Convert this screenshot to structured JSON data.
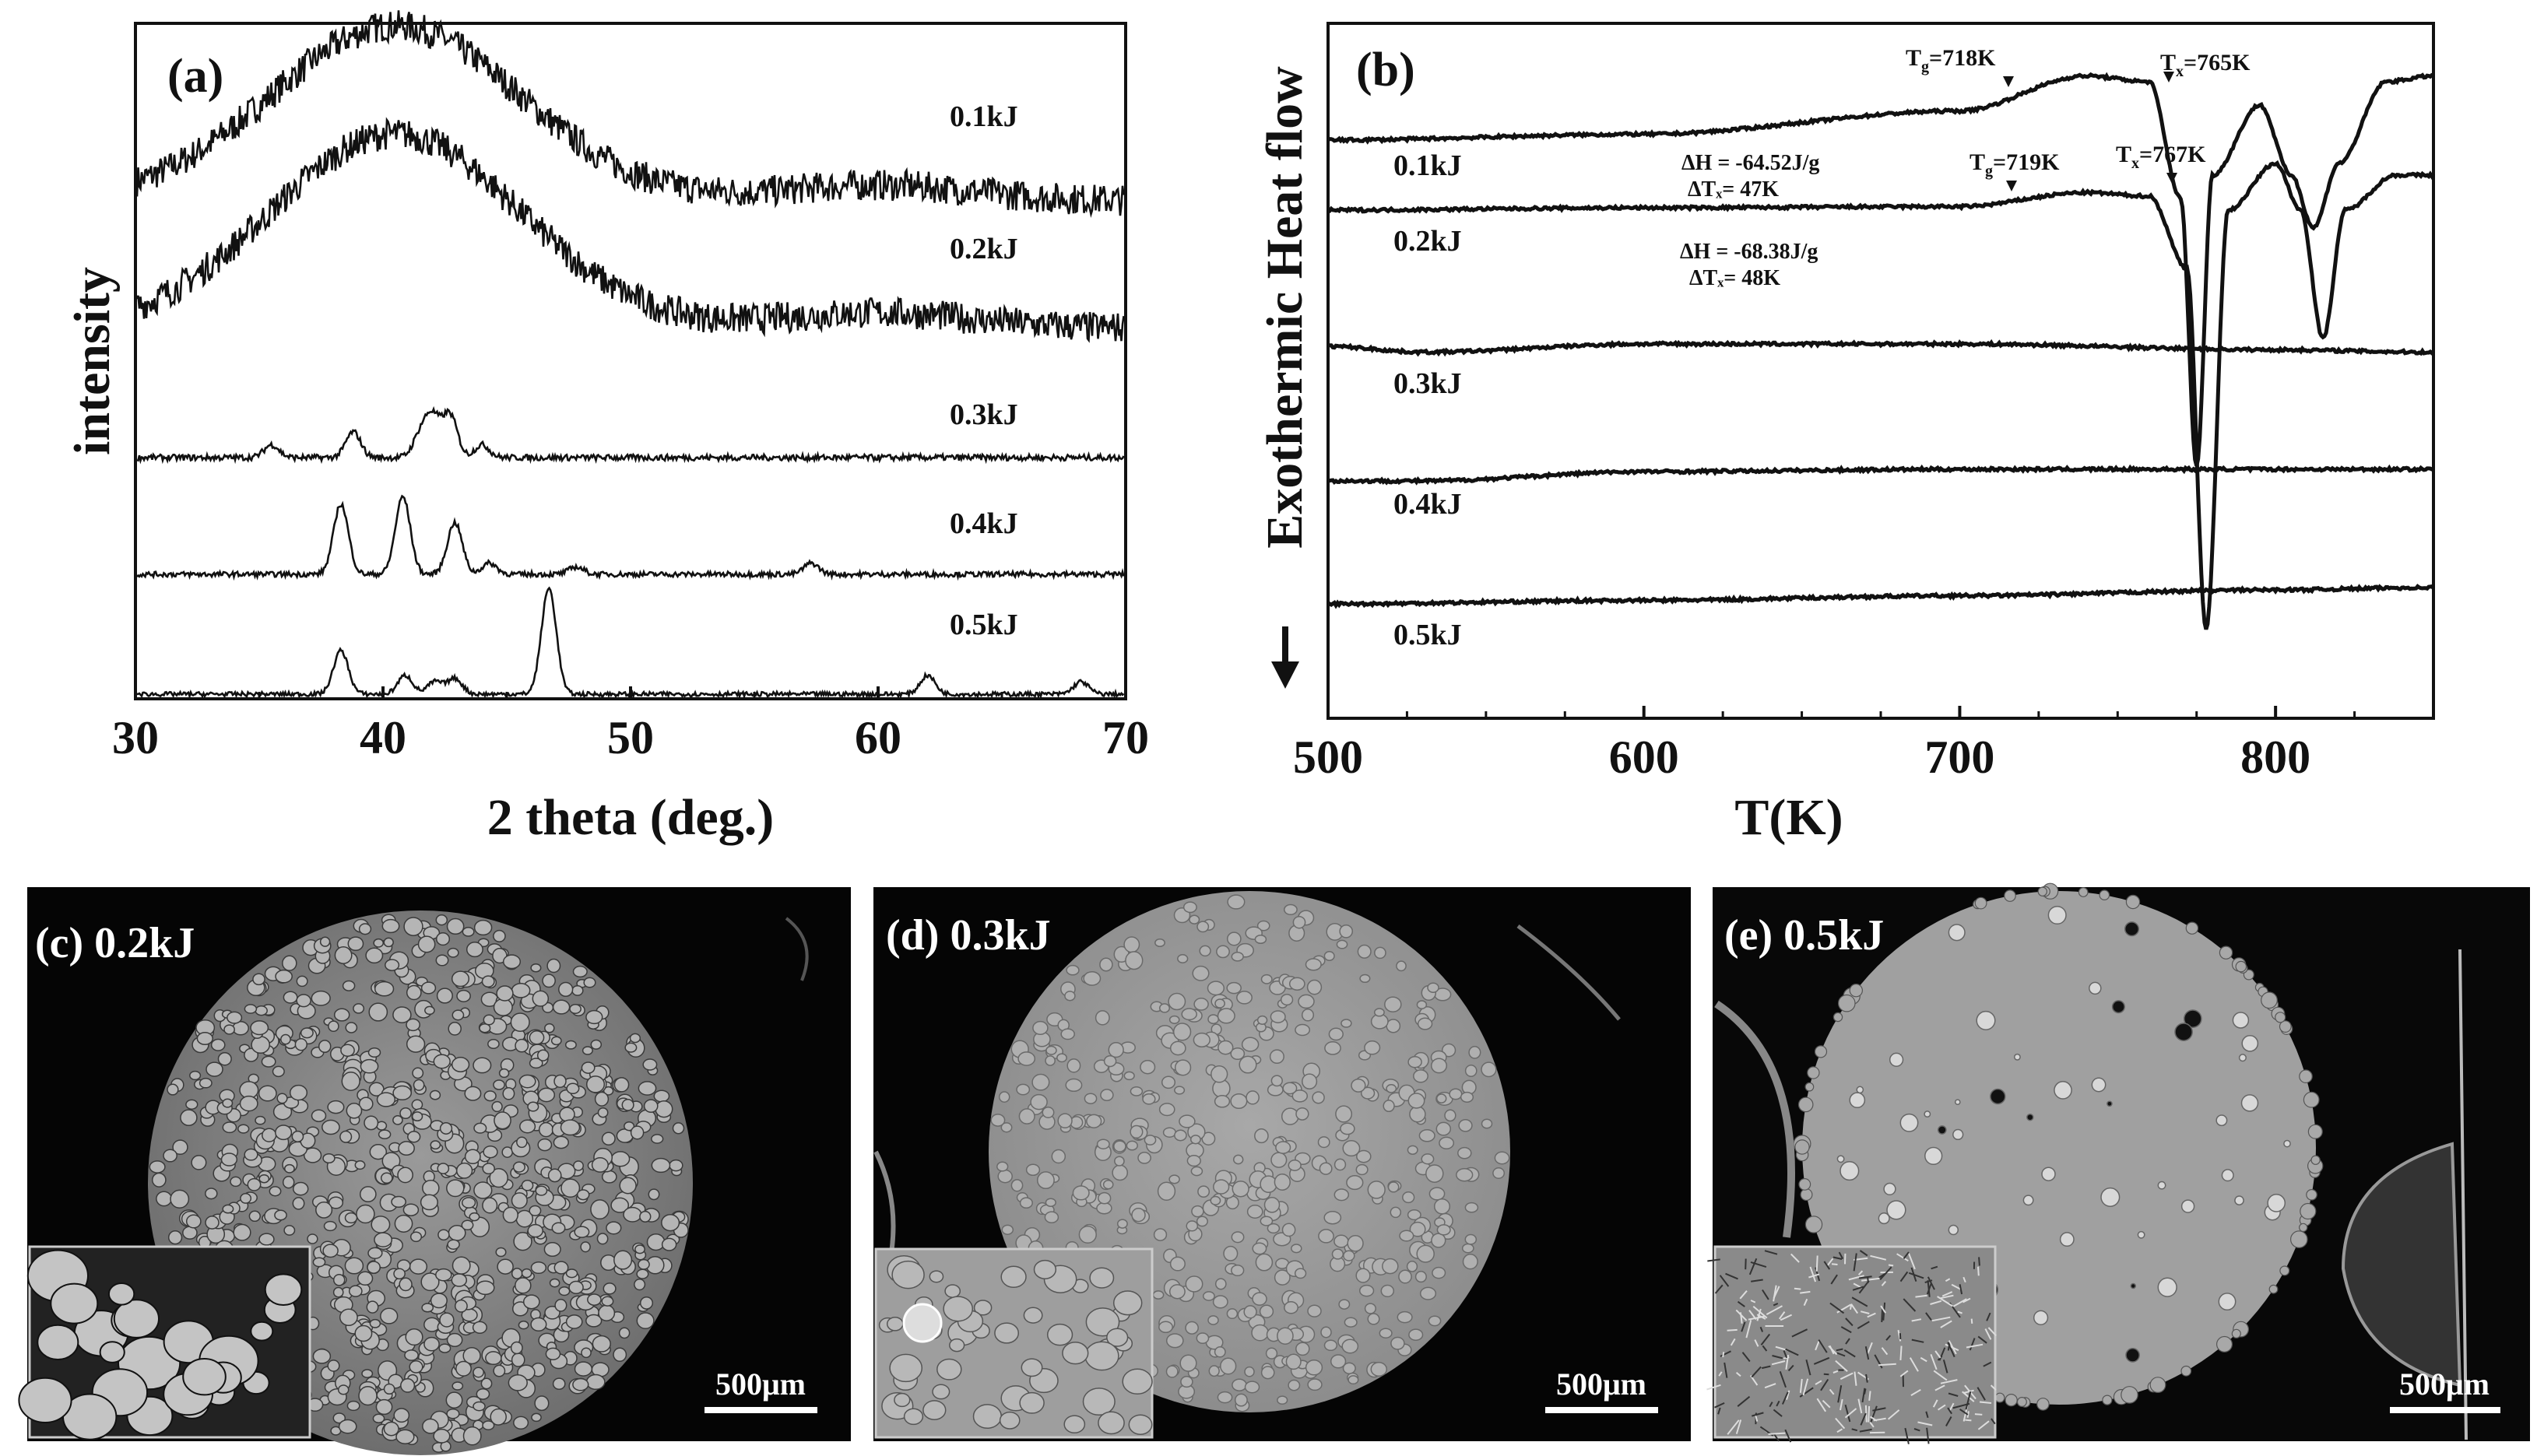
{
  "chart_data": [
    {
      "panel": "(a)",
      "type": "line",
      "xlabel": "2 theta (deg.)",
      "ylabel": "intensity",
      "xlim": [
        30,
        70
      ],
      "xticks": [
        30,
        40,
        50,
        60,
        70
      ],
      "series": [
        {
          "name": "0.1kJ",
          "pattern": "amorphous",
          "hump_center": 40.5,
          "hump_width": 5,
          "hump_height": 0.9,
          "peaks": []
        },
        {
          "name": "0.2kJ",
          "pattern": "amorphous",
          "hump_center": 40.5,
          "hump_width": 5,
          "hump_height": 1.0,
          "peaks": []
        },
        {
          "name": "0.3kJ",
          "pattern": "crystalline",
          "peaks": [
            [
              35.5,
              0.15
            ],
            [
              38.8,
              0.3
            ],
            [
              41.5,
              0.25
            ],
            [
              42.0,
              0.45
            ],
            [
              42.7,
              0.5
            ],
            [
              44.0,
              0.15
            ]
          ]
        },
        {
          "name": "0.4kJ",
          "pattern": "crystalline",
          "peaks": [
            [
              38.3,
              0.95
            ],
            [
              40.8,
              1.05
            ],
            [
              42.9,
              0.7
            ],
            [
              44.3,
              0.15
            ],
            [
              47.8,
              0.1
            ],
            [
              57.3,
              0.15
            ]
          ]
        },
        {
          "name": "0.5kJ",
          "pattern": "crystalline",
          "peaks": [
            [
              38.3,
              0.7
            ],
            [
              40.9,
              0.3
            ],
            [
              42.1,
              0.2
            ],
            [
              42.9,
              0.25
            ],
            [
              46.7,
              1.7
            ],
            [
              62.0,
              0.3
            ],
            [
              68.2,
              0.2
            ]
          ]
        }
      ]
    },
    {
      "panel": "(b)",
      "type": "line",
      "xlabel": "T(K)",
      "ylabel": "Exothermic Heat flow",
      "xlim": [
        500,
        850
      ],
      "xticks": [
        500,
        600,
        700,
        800
      ],
      "series": [
        {
          "name": "0.1kJ",
          "Tg": "718K",
          "Tx": "765K",
          "dH": "ΔH = -64.52J/g",
          "dTx": "ΔTₓ= 47K",
          "points": [
            [
              500,
              0.0
            ],
            [
              600,
              0.05
            ],
            [
              700,
              0.25
            ],
            [
              740,
              0.55
            ],
            [
              760,
              0.5
            ],
            [
              770,
              -0.5
            ],
            [
              775,
              -2.8
            ],
            [
              780,
              -0.3
            ],
            [
              795,
              0.3
            ],
            [
              805,
              -0.3
            ],
            [
              812,
              -0.75
            ],
            [
              820,
              -0.2
            ],
            [
              835,
              0.5
            ],
            [
              850,
              0.55
            ]
          ]
        },
        {
          "name": "0.2kJ",
          "Tg": "719K",
          "Tx": "767K",
          "dH": "ΔH = -68.38J/g",
          "dTx": "ΔTₓ= 48K",
          "points": [
            [
              500,
              0.0
            ],
            [
              600,
              0.02
            ],
            [
              700,
              0.03
            ],
            [
              740,
              0.15
            ],
            [
              760,
              0.12
            ],
            [
              772,
              -0.5
            ],
            [
              778,
              -3.6
            ],
            [
              785,
              0.0
            ],
            [
              800,
              0.4
            ],
            [
              808,
              0.0
            ],
            [
              815,
              -1.1
            ],
            [
              822,
              0.0
            ],
            [
              838,
              0.3
            ],
            [
              850,
              0.3
            ]
          ]
        },
        {
          "name": "0.3kJ",
          "points": [
            [
              500,
              0.0
            ],
            [
              530,
              -0.05
            ],
            [
              600,
              0.02
            ],
            [
              700,
              0.02
            ],
            [
              800,
              -0.03
            ],
            [
              850,
              -0.05
            ]
          ]
        },
        {
          "name": "0.4kJ",
          "points": [
            [
              500,
              0.0
            ],
            [
              530,
              0.0
            ],
            [
              600,
              0.08
            ],
            [
              700,
              0.1
            ],
            [
              800,
              0.1
            ],
            [
              850,
              0.1
            ]
          ]
        },
        {
          "name": "0.5kJ",
          "points": [
            [
              500,
              0.0
            ],
            [
              600,
              0.03
            ],
            [
              700,
              0.07
            ],
            [
              800,
              0.12
            ],
            [
              850,
              0.14
            ]
          ]
        }
      ]
    }
  ],
  "images": [
    {
      "label": "(c) 0.2kJ",
      "scale_bar": "500μm"
    },
    {
      "label": "(d) 0.3kJ",
      "scale_bar": "500μm"
    },
    {
      "label": "(e) 0.5kJ",
      "scale_bar": "500μm"
    }
  ]
}
